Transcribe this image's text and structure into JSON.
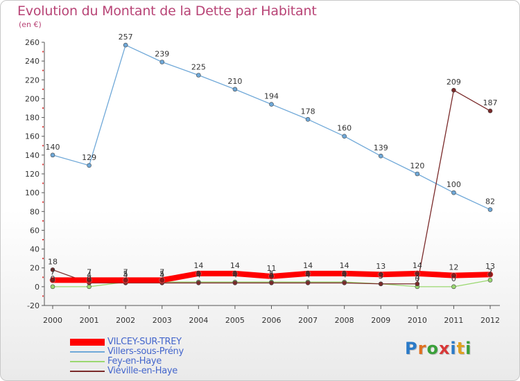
{
  "header": {
    "title": "Evolution du Montant de la Dette par Habitant",
    "unit": "(en €)"
  },
  "logo": {
    "text": "Proxiti",
    "letter_colors": [
      "#2a7ac8",
      "#e07020",
      "#3aa03a",
      "#d83838",
      "#2a7ac8",
      "#e0a020",
      "#3aa03a"
    ]
  },
  "chart_data": {
    "type": "line",
    "categories": [
      "2000",
      "2001",
      "2002",
      "2003",
      "2004",
      "2005",
      "2006",
      "2007",
      "2008",
      "2009",
      "2010",
      "2011",
      "2012"
    ],
    "ylim": [
      -20,
      260
    ],
    "yticks": [
      -20,
      0,
      20,
      40,
      60,
      80,
      100,
      120,
      140,
      160,
      180,
      200,
      220,
      240,
      260
    ],
    "grid": false,
    "legend_position": "bottom-left",
    "series": [
      {
        "name": "VILCEY-SUR-TREY",
        "color": "#ff0000",
        "values": [
          7,
          7,
          7,
          7,
          14,
          14,
          11,
          14,
          14,
          13,
          14,
          12,
          13
        ],
        "labels": [
          "7",
          "7",
          "7",
          "7",
          "14",
          "14",
          "11",
          "14",
          "14",
          "13",
          "14",
          "12",
          "13"
        ]
      },
      {
        "name": "Villers-sous-Prény",
        "color": "#6fa8d8",
        "values": [
          140,
          129,
          257,
          239,
          225,
          210,
          194,
          178,
          160,
          139,
          120,
          100,
          82
        ],
        "labels": [
          "140",
          "129",
          "257",
          "239",
          "225",
          "210",
          "194",
          "178",
          "160",
          "139",
          "120",
          "100",
          "82"
        ]
      },
      {
        "name": "Fey-en-Haye",
        "color": "#9ad870",
        "values": [
          0,
          0,
          5,
          5,
          5,
          5,
          5,
          5,
          5,
          3,
          0,
          0,
          7
        ],
        "labels": [
          "0",
          "0",
          "5",
          "5",
          "5",
          "5",
          "5",
          "5",
          "5",
          "3",
          "0",
          "0",
          "7"
        ]
      },
      {
        "name": "Viéville-en-Haye",
        "color": "#7a2a2a",
        "values": [
          18,
          4,
          4,
          4,
          4,
          4,
          4,
          4,
          4,
          3,
          3,
          209,
          187
        ],
        "labels": [
          "18",
          "4",
          "4",
          "4",
          "4",
          "4",
          "4",
          "4",
          "4",
          "3",
          "3",
          "209",
          "187"
        ]
      }
    ]
  }
}
